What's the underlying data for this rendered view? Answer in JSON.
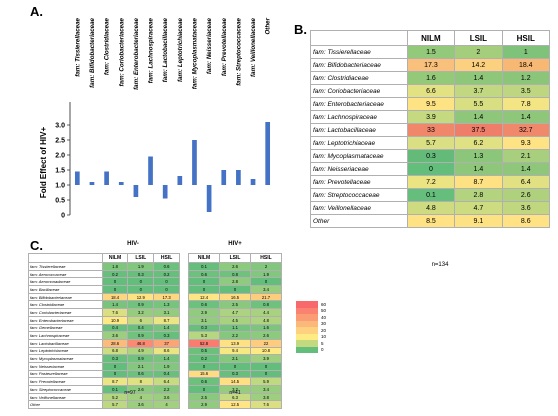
{
  "labels": {
    "a": "A.",
    "b": "B.",
    "c": "C."
  },
  "panel_a": {
    "ylabel": "Fold Effect of HIV+",
    "chart_data": {
      "type": "bar",
      "ylabel": "Fold Effect of HIV+",
      "ylim": [
        0,
        3.5
      ],
      "yticks": [
        0,
        0.5,
        1.0,
        1.5,
        2.0,
        2.5,
        3.0
      ],
      "ytick_labels": [
        "0",
        "0.5",
        "1.0",
        "1.5",
        "2.0",
        "2.5",
        "3.0"
      ],
      "categories": [
        "fam: Tissierellaceae",
        "fam: Bifidobacteriaceae",
        "fam: Clostridiaceae",
        "fam: Coriobacteriaceae",
        "fam: Enterobacteriaceae",
        "fam: Lachnospiraceae",
        "fam: Lactobacillaceae",
        "fam: Leptotrichiaceae",
        "fam: Mycoplasmataceae",
        "fam: Neisseriaceae",
        "fam: Prevotellaceae",
        "fam: Streptococcaceae",
        "fam: Veillonellaceae",
        "Other"
      ],
      "values": [
        1.45,
        1.1,
        1.45,
        1.1,
        0.6,
        1.95,
        0.55,
        1.3,
        2.5,
        0.1,
        1.5,
        1.5,
        1.2,
        3.1
      ],
      "grid": false,
      "bar_color": "#4472c4"
    }
  },
  "panel_b": {
    "headers": [
      "NILM",
      "LSIL",
      "HSIL"
    ],
    "rows": [
      {
        "name": "fam: Tissierellaceae",
        "values": [
          "1.5",
          "2",
          "1"
        ],
        "colors": [
          "#92c97a",
          "#a4ce7c",
          "#7fc27a"
        ]
      },
      {
        "name": "fam: Bifidobacteriaceae",
        "values": [
          "17.3",
          "14.2",
          "18.4"
        ],
        "colors": [
          "#f8c07a",
          "#fbd07f",
          "#f7b874"
        ]
      },
      {
        "name": "fam: Clostridiaceae",
        "values": [
          "1.6",
          "1.4",
          "1.2"
        ],
        "colors": [
          "#94c97a",
          "#8fc77a",
          "#8ac57a"
        ]
      },
      {
        "name": "fam: Coriobacteriaceae",
        "values": [
          "6.6",
          "3.7",
          "3.5"
        ],
        "colors": [
          "#e3e283",
          "#c2d880",
          "#bfd680"
        ]
      },
      {
        "name": "fam: Enterobacteriaceae",
        "values": [
          "9.5",
          "5.5",
          "7.8"
        ],
        "colors": [
          "#fde384",
          "#d7df82",
          "#f3e584"
        ]
      },
      {
        "name": "fam: Lachnospiraceae",
        "values": [
          "3.9",
          "1.4",
          "1.4"
        ],
        "colors": [
          "#c5d980",
          "#8fc77a",
          "#8fc77a"
        ]
      },
      {
        "name": "fam: Lactobacillaceae",
        "values": [
          "33",
          "37.5",
          "32.7"
        ],
        "colors": [
          "#f0876b",
          "#ee7d69",
          "#f0896b"
        ]
      },
      {
        "name": "fam: Leptotrichiaceae",
        "values": [
          "5.7",
          "6.2",
          "9.3"
        ],
        "colors": [
          "#d9df82",
          "#dfe183",
          "#fde384"
        ]
      },
      {
        "name": "fam:  Mycoplasmataceae",
        "values": [
          "0.3",
          "1.3",
          "2.1"
        ],
        "colors": [
          "#64ba78",
          "#8cc67a",
          "#a7cf7d"
        ]
      },
      {
        "name": "fam: Neisseriaceae",
        "values": [
          "0",
          "1.4",
          "1.4"
        ],
        "colors": [
          "#63be7b",
          "#8fc77a",
          "#8fc77a"
        ]
      },
      {
        "name": "fam: Prevotellaceae",
        "values": [
          "7.2",
          "8.7",
          "6.4"
        ],
        "colors": [
          "#ece383",
          "#fee182",
          "#e1e183"
        ]
      },
      {
        "name": "fam: Streptococcaceae",
        "values": [
          "0.1",
          "2.8",
          "2.6"
        ],
        "colors": [
          "#65be7b",
          "#b3d37e",
          "#afd17e"
        ]
      },
      {
        "name": "fam: Veillonellaceae",
        "values": [
          "4.8",
          "4.7",
          "3.6"
        ],
        "colors": [
          "#cedb81",
          "#cddb81",
          "#c0d780"
        ]
      },
      {
        "name": "Other",
        "values": [
          "8.5",
          "9.1",
          "8.6"
        ],
        "colors": [
          "#fee283",
          "#fde283",
          "#fee283"
        ]
      }
    ],
    "n_caption": "n=134"
  },
  "panel_c": {
    "titles": {
      "left": "HIV-",
      "right": "HIV+"
    },
    "headers": [
      "NILM",
      "LSIL",
      "HSIL"
    ],
    "names": [
      "fam: Tissierellaceae",
      "fam: Aerococcaceae",
      "fam: Aeromonadaceae",
      "fam: Bacillaceae",
      "fam: Bifidobacteriaceae",
      "fam: Clostridiaceae",
      "fam: Coriobacteriaceae",
      "fam: Enterobacteriaceae",
      "fam: Gemellaceae",
      "fam: Lachnospiraceae",
      "fam: Lactobacillaceae",
      "fam: Leptotrichiaceae",
      "fam: Mycoplasmataceae",
      "fam: Neisseriaceae",
      "fam: Pasteurellaceae",
      "fam: Prevotellaceae",
      "fam: Streptococcaceae",
      "fam: Veillonellaceae",
      "Other"
    ],
    "left_values": [
      [
        "1.8",
        "1.9",
        "0.6"
      ],
      [
        "0.2",
        "0.3",
        "0.2"
      ],
      [
        "0",
        "0",
        "0"
      ],
      [
        "0",
        "0",
        "0"
      ],
      [
        "18.4",
        "12.9",
        "17.3"
      ],
      [
        "1.4",
        "0.9",
        "1.3"
      ],
      [
        "7.6",
        "3.2",
        "3.1"
      ],
      [
        "10.9",
        "6",
        "8.7"
      ],
      [
        "0.4",
        "0.4",
        "1.4"
      ],
      [
        "3.6",
        "0.9",
        "0.3"
      ],
      [
        "28.6",
        "46.8",
        "37"
      ],
      [
        "6.8",
        "4.9",
        "8.6"
      ],
      [
        "0.3",
        "0.9",
        "1.4"
      ],
      [
        "0",
        "2.1",
        "1.9"
      ],
      [
        "0",
        "0.6",
        "0.4"
      ],
      [
        "8.7",
        "8",
        "6.4"
      ],
      [
        "0.1",
        "2.6",
        "2.2"
      ],
      [
        "5.2",
        "4",
        "3.6"
      ],
      [
        "5.7",
        "3.6",
        "4"
      ]
    ],
    "right_values": [
      [
        "0.1",
        "2.6",
        "2"
      ],
      [
        "0.6",
        "0.8",
        "1.9"
      ],
      [
        "0",
        "2.8",
        "0"
      ],
      [
        "0",
        "0",
        "3.4"
      ],
      [
        "12.4",
        "16.5",
        "21.7"
      ],
      [
        "0.6",
        "2.5",
        "0.8"
      ],
      [
        "2.9",
        "4.7",
        "4.4"
      ],
      [
        "3.1",
        "4.5",
        "4.8"
      ],
      [
        "0.3",
        "1.1",
        "1.6"
      ],
      [
        "5.3",
        "2.2",
        "2.6"
      ],
      [
        "52.8",
        "13.9",
        "22"
      ],
      [
        "0.5",
        "9.4",
        "10.8"
      ],
      [
        "0.2",
        "2.1",
        "3.9"
      ],
      [
        "0",
        "0",
        "0"
      ],
      [
        "15.6",
        "0.3",
        "0"
      ],
      [
        "0.6",
        "14.5",
        "5.9"
      ],
      [
        "0",
        "3.2",
        "3.4"
      ],
      [
        "2.5",
        "6.3",
        "3.8"
      ],
      [
        "2.9",
        "12.5",
        "7.6"
      ]
    ],
    "n_left": "n=97",
    "n_right": "n=41",
    "legend": [
      {
        "label": "60",
        "color": "#f8696b"
      },
      {
        "label": "50",
        "color": "#f98370"
      },
      {
        "label": "40",
        "color": "#fa9d75"
      },
      {
        "label": "30",
        "color": "#fcb77a"
      },
      {
        "label": "20",
        "color": "#fdd17f"
      },
      {
        "label": "10",
        "color": "#ffeb84"
      },
      {
        "label": "5",
        "color": "#c2d980"
      },
      {
        "label": "0",
        "color": "#63be7b"
      }
    ]
  }
}
